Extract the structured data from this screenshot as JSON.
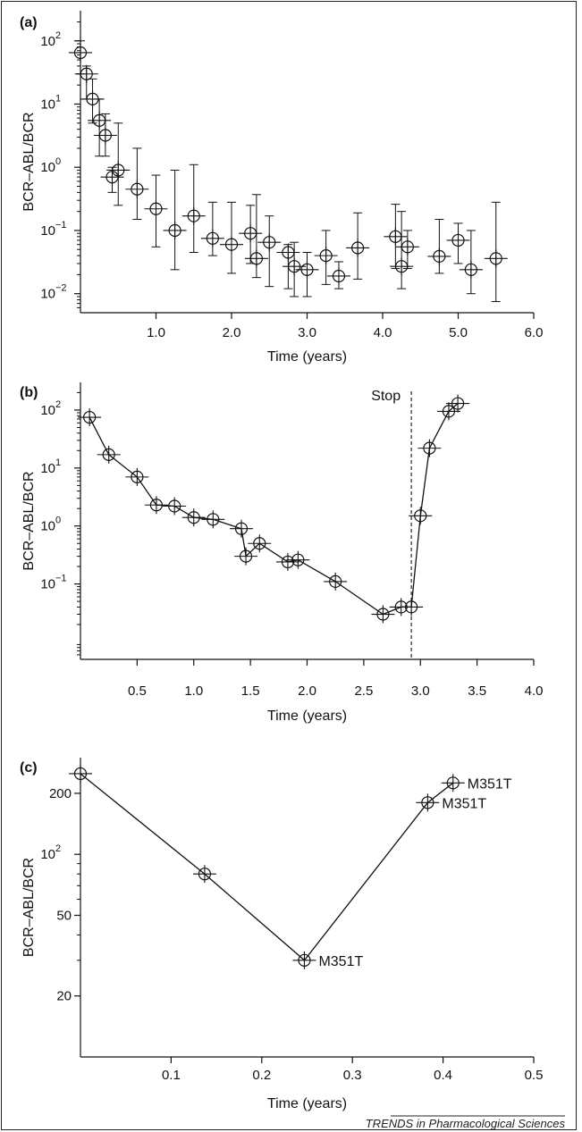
{
  "credit": "TRENDS in Pharmacological Sciences",
  "chart_data": [
    {
      "panel": "(a)",
      "type": "scatter",
      "xlabel": "Time (years)",
      "ylabel": "BCR–ABL/BCR",
      "yscale": "log",
      "xlim": [
        0,
        6.0
      ],
      "ylim": [
        0.005,
        300
      ],
      "xticks": [
        1.0,
        2.0,
        3.0,
        4.0,
        5.0,
        6.0
      ],
      "xtick_labels": [
        "1.0",
        "2.0",
        "3.0",
        "4.0",
        "5.0",
        "6.0"
      ],
      "yticks": [
        0.01,
        0.1,
        1,
        10,
        100
      ],
      "ytick_labels": [
        [
          "10",
          "−2"
        ],
        [
          "10",
          "−1"
        ],
        [
          "10",
          "0"
        ],
        [
          "10",
          "1"
        ],
        [
          "10",
          "2"
        ]
      ],
      "points": [
        {
          "x": 0.0,
          "y": 65,
          "ylo": 30,
          "yhi": 100
        },
        {
          "x": 0.08,
          "y": 30,
          "ylo": 12,
          "yhi": 40
        },
        {
          "x": 0.16,
          "y": 12,
          "ylo": 5,
          "yhi": 25
        },
        {
          "x": 0.25,
          "y": 5.5,
          "ylo": 1.5,
          "yhi": 12
        },
        {
          "x": 0.33,
          "y": 3.2,
          "ylo": 1.5,
          "yhi": 7
        },
        {
          "x": 0.42,
          "y": 0.7,
          "ylo": 0.4,
          "yhi": 1.0
        },
        {
          "x": 0.5,
          "y": 0.9,
          "ylo": 0.25,
          "yhi": 5
        },
        {
          "x": 0.75,
          "y": 0.45,
          "ylo": 0.15,
          "yhi": 2
        },
        {
          "x": 1.0,
          "y": 0.22,
          "ylo": 0.055,
          "yhi": 0.75
        },
        {
          "x": 1.25,
          "y": 0.1,
          "ylo": 0.024,
          "yhi": 0.9
        },
        {
          "x": 1.5,
          "y": 0.17,
          "ylo": 0.045,
          "yhi": 1.1
        },
        {
          "x": 1.75,
          "y": 0.075,
          "ylo": 0.04,
          "yhi": 0.28
        },
        {
          "x": 2.0,
          "y": 0.06,
          "ylo": 0.021,
          "yhi": 0.28
        },
        {
          "x": 2.25,
          "y": 0.09,
          "ylo": 0.03,
          "yhi": 0.25
        },
        {
          "x": 2.33,
          "y": 0.036,
          "ylo": 0.018,
          "yhi": 0.37
        },
        {
          "x": 2.5,
          "y": 0.065,
          "ylo": 0.013,
          "yhi": 0.17
        },
        {
          "x": 2.75,
          "y": 0.045,
          "ylo": 0.012,
          "yhi": 0.06
        },
        {
          "x": 2.83,
          "y": 0.027,
          "ylo": 0.009,
          "yhi": 0.065
        },
        {
          "x": 3.0,
          "y": 0.024,
          "ylo": 0.009,
          "yhi": 0.045
        },
        {
          "x": 3.25,
          "y": 0.04,
          "ylo": 0.014,
          "yhi": 0.1
        },
        {
          "x": 3.42,
          "y": 0.019,
          "ylo": 0.012,
          "yhi": 0.032
        },
        {
          "x": 3.67,
          "y": 0.053,
          "ylo": 0.017,
          "yhi": 0.19
        },
        {
          "x": 4.17,
          "y": 0.08,
          "ylo": 0.025,
          "yhi": 0.26
        },
        {
          "x": 4.25,
          "y": 0.027,
          "ylo": 0.012,
          "yhi": 0.2
        },
        {
          "x": 4.33,
          "y": 0.055,
          "ylo": 0.025,
          "yhi": 0.1
        },
        {
          "x": 4.75,
          "y": 0.039,
          "ylo": 0.021,
          "yhi": 0.15
        },
        {
          "x": 5.0,
          "y": 0.07,
          "ylo": 0.03,
          "yhi": 0.13
        },
        {
          "x": 5.17,
          "y": 0.024,
          "ylo": 0.01,
          "yhi": 0.1
        },
        {
          "x": 5.5,
          "y": 0.036,
          "ylo": 0.0075,
          "yhi": 0.28
        }
      ]
    },
    {
      "panel": "(b)",
      "type": "line",
      "xlabel": "Time (years)",
      "ylabel": "BCR–ABL/BCR",
      "yscale": "log",
      "xlim": [
        0,
        4.0
      ],
      "ylim": [
        0.005,
        300
      ],
      "xticks": [
        0.5,
        1.0,
        1.5,
        2.0,
        2.5,
        3.0,
        3.5,
        4.0
      ],
      "xtick_labels": [
        "0.5",
        "1.0",
        "1.5",
        "2.0",
        "2.5",
        "3.0",
        "3.5",
        "4.0"
      ],
      "yticks": [
        0.1,
        1,
        10,
        100
      ],
      "ytick_labels": [
        [
          "10",
          "−1"
        ],
        [
          "10",
          "0"
        ],
        [
          "10",
          "1"
        ],
        [
          "10",
          "2"
        ]
      ],
      "annotations": [
        {
          "text": "Stop",
          "x": 2.92
        }
      ],
      "x": [
        0.08,
        0.25,
        0.5,
        0.67,
        0.83,
        1.0,
        1.17,
        1.42,
        1.46,
        1.58,
        1.83,
        1.92,
        2.25,
        2.67,
        2.83,
        2.92,
        3.0,
        3.08,
        3.25,
        3.33
      ],
      "y": [
        75,
        17,
        7,
        2.3,
        2.2,
        1.4,
        1.3,
        0.9,
        0.3,
        0.5,
        0.24,
        0.26,
        0.11,
        0.03,
        0.04,
        0.04,
        1.5,
        22,
        95,
        130
      ]
    },
    {
      "panel": "(c)",
      "type": "line",
      "xlabel": "Time (years)",
      "ylabel": "BCR–ABL/BCR",
      "yscale": "log",
      "xlim": [
        0,
        0.5
      ],
      "ylim": [
        10,
        300
      ],
      "xticks": [
        0.1,
        0.2,
        0.3,
        0.4,
        0.5
      ],
      "xtick_labels": [
        "0.1",
        "0.2",
        "0.3",
        "0.4",
        "0.5"
      ],
      "yticks": [
        20,
        50,
        100,
        200
      ],
      "ytick_labels": [
        [
          "20",
          ""
        ],
        [
          "50",
          ""
        ],
        [
          "10",
          "2"
        ],
        [
          "200",
          ""
        ]
      ],
      "x": [
        0.0,
        0.137,
        0.247,
        0.383,
        0.411
      ],
      "y": [
        250,
        80,
        30,
        180,
        225
      ],
      "point_labels": [
        "",
        "",
        "M351T",
        "M351T",
        "M351T"
      ]
    }
  ]
}
